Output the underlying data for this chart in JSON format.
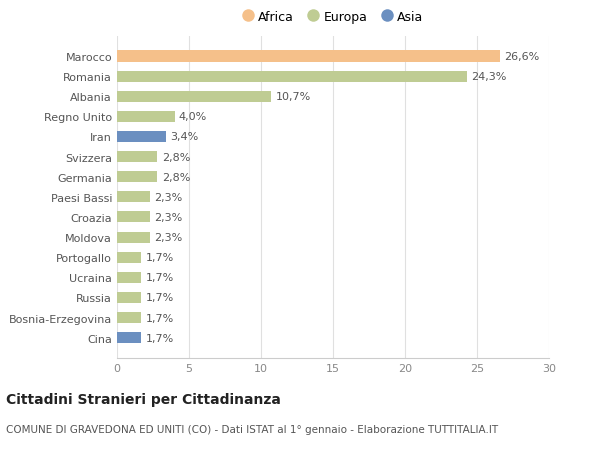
{
  "categories": [
    "Marocco",
    "Romania",
    "Albania",
    "Regno Unito",
    "Iran",
    "Svizzera",
    "Germania",
    "Paesi Bassi",
    "Croazia",
    "Moldova",
    "Portogallo",
    "Ucraina",
    "Russia",
    "Bosnia-Erzegovina",
    "Cina"
  ],
  "values": [
    26.6,
    24.3,
    10.7,
    4.0,
    3.4,
    2.8,
    2.8,
    2.3,
    2.3,
    2.3,
    1.7,
    1.7,
    1.7,
    1.7,
    1.7
  ],
  "labels": [
    "26,6%",
    "24,3%",
    "10,7%",
    "4,0%",
    "3,4%",
    "2,8%",
    "2,8%",
    "2,3%",
    "2,3%",
    "2,3%",
    "1,7%",
    "1,7%",
    "1,7%",
    "1,7%",
    "1,7%"
  ],
  "continents": [
    "Africa",
    "Europa",
    "Europa",
    "Europa",
    "Asia",
    "Europa",
    "Europa",
    "Europa",
    "Europa",
    "Europa",
    "Europa",
    "Europa",
    "Europa",
    "Europa",
    "Asia"
  ],
  "colors": {
    "Africa": "#F5C08A",
    "Europa": "#BFCC93",
    "Asia": "#6B8FC0"
  },
  "legend_labels": [
    "Africa",
    "Europa",
    "Asia"
  ],
  "xlim": [
    0,
    30
  ],
  "xticks": [
    0,
    5,
    10,
    15,
    20,
    25,
    30
  ],
  "title": "Cittadini Stranieri per Cittadinanza",
  "subtitle": "COMUNE DI GRAVEDONA ED UNITI (CO) - Dati ISTAT al 1° gennaio - Elaborazione TUTTITALIA.IT",
  "bg_color": "#ffffff",
  "grid_color": "#e0e0e0",
  "bar_height": 0.55,
  "label_fontsize": 8,
  "tick_fontsize": 8,
  "title_fontsize": 10,
  "subtitle_fontsize": 7.5
}
